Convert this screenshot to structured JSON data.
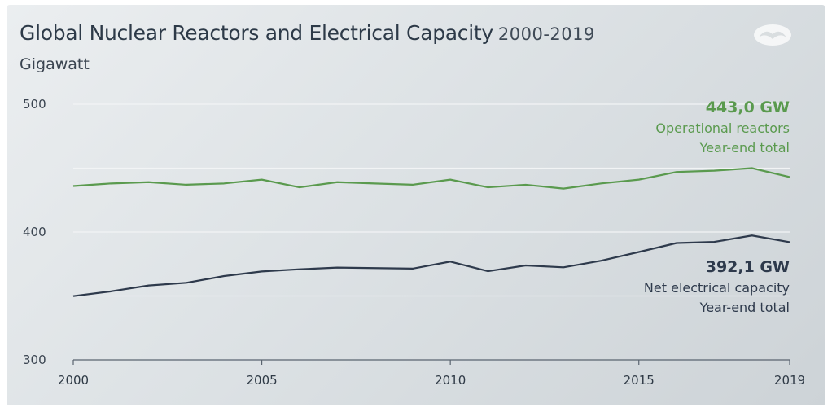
{
  "header": {
    "title": "Global Nuclear Reactors and Electrical Capacity",
    "years": "2000-2019",
    "unit": "Gigawatt"
  },
  "colors": {
    "reactors": "#5a9a4e",
    "capacity": "#2e3a4c",
    "grid": "#f2f4f5",
    "axis": "#5a6470"
  },
  "chart_data": {
    "type": "line",
    "title": "Global Nuclear Reactors and Electrical Capacity 2000-2019",
    "ylabel": "Gigawatt",
    "xlabel": "",
    "ylim": [
      300,
      500
    ],
    "xlim": [
      2000,
      2019
    ],
    "yticks": [
      "500",
      "400",
      "300"
    ],
    "xticks": [
      "2000",
      "2005",
      "2010",
      "2015",
      "2019"
    ],
    "grid": true,
    "x": [
      2000,
      2001,
      2002,
      2003,
      2004,
      2005,
      2006,
      2007,
      2008,
      2009,
      2010,
      2011,
      2012,
      2013,
      2014,
      2015,
      2016,
      2017,
      2018,
      2019
    ],
    "series": [
      {
        "key": "reactors",
        "values": [
          436,
          438,
          439,
          437,
          438,
          441,
          435,
          439,
          438,
          437,
          441,
          435,
          437,
          434,
          438,
          441,
          447,
          448,
          450,
          443
        ],
        "label_value": "443,0 GW",
        "label_line1": "Operational reactors",
        "label_line2": "Year-end total"
      },
      {
        "key": "capacity",
        "values": [
          349.9,
          353.6,
          358.2,
          360.3,
          365.6,
          369.2,
          370.9,
          372.2,
          371.8,
          371.4,
          376.9,
          369.4,
          373.9,
          372.4,
          377.6,
          384.4,
          391.4,
          392.3,
          397.3,
          392.1
        ],
        "label_value": "392,1 GW",
        "label_line1": "Net electrical capacity",
        "label_line2": "Year-end total"
      }
    ]
  }
}
